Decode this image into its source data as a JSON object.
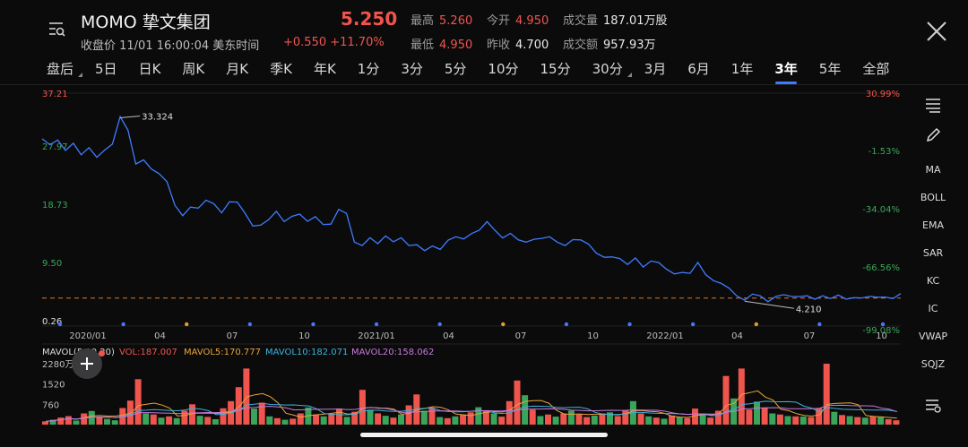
{
  "header": {
    "symbol": "MOMO 挚文集团",
    "status_line": "收盘价 11/01 16:00:04 美东时间",
    "price": "5.250",
    "change": "+0.550 +11.70%",
    "stats": [
      {
        "label": "最高",
        "value": "5.260",
        "color": "red"
      },
      {
        "label": "今开",
        "value": "4.950",
        "color": "red"
      },
      {
        "label": "成交量",
        "value": "187.01万股",
        "color": "white"
      },
      {
        "label": "最低",
        "value": "4.950",
        "color": "red"
      },
      {
        "label": "昨收",
        "value": "4.700",
        "color": "white"
      },
      {
        "label": "成交额",
        "value": "957.93万",
        "color": "white"
      }
    ],
    "menu_icon": "list-search-icon",
    "close_icon": "close-icon"
  },
  "tabs": [
    "盘后",
    "5日",
    "日K",
    "周K",
    "月K",
    "季K",
    "年K",
    "1分",
    "3分",
    "5分",
    "10分",
    "15分",
    "30分",
    "3月",
    "6月",
    "1年",
    "3年",
    "5年",
    "全部"
  ],
  "active_tab": "3年",
  "chart_data": {
    "type": "line",
    "y_left_ticks": [
      "37.21",
      "27.97",
      "18.73",
      "9.50",
      "0.26"
    ],
    "y_right_ticks": [
      "30.99%",
      "-1.53%",
      "-34.04%",
      "-66.56%",
      "-99.08%"
    ],
    "x_ticks": [
      "2020/01",
      "04",
      "07",
      "10",
      "2021/01",
      "04",
      "07",
      "10",
      "2022/01",
      "04",
      "07",
      "10"
    ],
    "ylim": [
      0.26,
      37.21
    ],
    "max_label": "33.324",
    "min_label": "4.210",
    "reference_price": 4.7,
    "series": [
      {
        "values": [
          29.8,
          29.2,
          29.6,
          28.3,
          29.1,
          27.6,
          28.4,
          27.2,
          28.0,
          29.3,
          33.3,
          31.5,
          25.8,
          26.8,
          25.0,
          24.6,
          23.0,
          19.6,
          17.6,
          19.3,
          18.8,
          20.4,
          19.5,
          18.4,
          19.8,
          20.1,
          18.0,
          16.3,
          16.1,
          17.3,
          18.3,
          17.0,
          17.5,
          18.2,
          16.7,
          17.8,
          16.2,
          16.6,
          18.6,
          18.3,
          13.4,
          13.2,
          14.1,
          13.5,
          14.4,
          13.8,
          14.1,
          13.2,
          13.0,
          12.4,
          12.8,
          12.6,
          13.7,
          14.6,
          13.9,
          15.1,
          15.3,
          17.0,
          15.3,
          14.4,
          14.8,
          14.1,
          13.4,
          14.2,
          14.0,
          14.6,
          13.4,
          13.2,
          13.8,
          14.1,
          13.1,
          12.0,
          11.0,
          11.4,
          10.8,
          10.2,
          10.9,
          9.8,
          10.4,
          10.5,
          9.1,
          8.7,
          8.6,
          8.8,
          10.2,
          8.6,
          7.3,
          7.2,
          6.1,
          5.2,
          4.2,
          5.5,
          4.9,
          4.3,
          4.8,
          5.4,
          4.8,
          5.1,
          4.9,
          4.7,
          4.9,
          4.8,
          5.0,
          4.7,
          4.6,
          4.9,
          4.8,
          5.0,
          4.7,
          4.8,
          5.25
        ]
      }
    ],
    "event_markers": [
      {
        "pos": "2020/01",
        "color": "#4a76ff"
      },
      {
        "pos": "03",
        "color": "#4a76ff"
      },
      {
        "pos": "04",
        "color": "#e0a030"
      },
      {
        "pos": "06",
        "color": "#4a76ff"
      },
      {
        "pos": "09",
        "color": "#4a76ff"
      },
      {
        "pos": "12",
        "color": "#4a76ff"
      },
      {
        "pos": "2021/03",
        "color": "#4a76ff"
      },
      {
        "pos": "2021/04",
        "color": "#e0a030"
      },
      {
        "pos": "2021/08",
        "color": "#4a76ff"
      },
      {
        "pos": "2021/11",
        "color": "#4a76ff"
      },
      {
        "pos": "2022/03",
        "color": "#4a76ff"
      },
      {
        "pos": "2022/04",
        "color": "#e0a030"
      },
      {
        "pos": "2022/06",
        "color": "#4a76ff"
      },
      {
        "pos": "2022/09",
        "color": "#4a76ff"
      }
    ],
    "line_color": "#3f7bff"
  },
  "volume": {
    "legend": {
      "title": "MAVOL(5,10,20)",
      "vol": "VOL:187.007",
      "ma5": "MAVOL5:170.777",
      "ma10": "MAVOL10:182.071",
      "ma20": "MAVOL20:158.062"
    },
    "y_ticks": [
      "2280万股",
      "1520",
      "760"
    ],
    "ylim": [
      0,
      2280
    ],
    "ma5_color": "#e8a33a",
    "ma10_color": "#3cb2d8",
    "ma20_color": "#c678dd",
    "up_color": "#f0554d",
    "down_color": "#3aa55a",
    "bars": [
      120,
      180,
      260,
      320,
      150,
      420,
      510,
      300,
      210,
      160,
      620,
      900,
      1700,
      420,
      380,
      260,
      310,
      240,
      520,
      760,
      330,
      290,
      200,
      610,
      880,
      1400,
      2100,
      600,
      820,
      310,
      240,
      180,
      220,
      420,
      640,
      380,
      310,
      400,
      600,
      290,
      480,
      1300,
      560,
      420,
      330,
      260,
      380,
      720,
      1130,
      520,
      610,
      280,
      240,
      310,
      380,
      460,
      650,
      520,
      420,
      300,
      880,
      1650,
      1100,
      560,
      320,
      380,
      300,
      420,
      520,
      380,
      280,
      340,
      420,
      460,
      320,
      540,
      880,
      420,
      310,
      260,
      220,
      340,
      280,
      240,
      600,
      420,
      260,
      520,
      1820,
      980,
      2100,
      560,
      860,
      640,
      420,
      380,
      320,
      310,
      300,
      280,
      620,
      2280,
      480,
      360,
      320,
      280,
      260,
      300,
      280,
      200,
      160
    ],
    "bar_dir": [
      1,
      0,
      1,
      1,
      0,
      1,
      0,
      1,
      0,
      0,
      1,
      1,
      1,
      0,
      1,
      0,
      1,
      0,
      1,
      1,
      0,
      1,
      0,
      1,
      1,
      1,
      1,
      0,
      1,
      0,
      1,
      0,
      1,
      1,
      0,
      1,
      0,
      1,
      1,
      0,
      1,
      1,
      0,
      1,
      0,
      1,
      0,
      1,
      1,
      0,
      1,
      0,
      1,
      0,
      1,
      1,
      0,
      1,
      0,
      1,
      1,
      1,
      0,
      1,
      0,
      1,
      0,
      1,
      0,
      1,
      1,
      0,
      1,
      0,
      1,
      1,
      0,
      1,
      0,
      1,
      0,
      1,
      0,
      1,
      1,
      0,
      1,
      1,
      1,
      0,
      1,
      1,
      0,
      1,
      0,
      1,
      0,
      1,
      0,
      1,
      1,
      1,
      0,
      1,
      0,
      1,
      0,
      1,
      0,
      1,
      1
    ]
  },
  "sidebar": {
    "items": [
      "MA",
      "BOLL",
      "EMA",
      "SAR",
      "KC",
      "IC",
      "VWAP",
      "SQJZ"
    ],
    "top_icons": [
      "indicator-list-icon",
      "pencil-icon"
    ],
    "bottom_icon": "settings-list-icon"
  },
  "volume_add_icon": "plus-icon"
}
